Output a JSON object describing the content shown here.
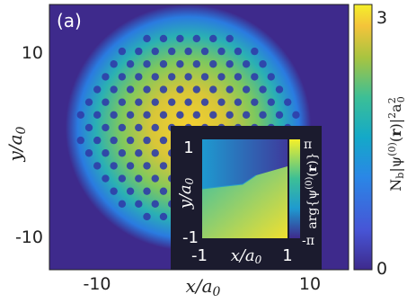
{
  "chart_data": [
    {
      "type": "heatmap",
      "panel_label": "(a)",
      "xlabel": "x/a₀",
      "ylabel": "y/a₀",
      "xlim": [
        -14,
        14
      ],
      "ylim": [
        -14,
        14
      ],
      "xticks": [
        -10,
        10
      ],
      "yticks": [
        10,
        -10
      ],
      "colorbar": {
        "label": "N_b|ψ^(0)(r)|² a₀²",
        "min": 0,
        "max": 3,
        "tick_labels": [
          "3",
          "0"
        ]
      },
      "condensate": {
        "center": [
          -1,
          1
        ],
        "radius": 11.5,
        "lattice": "triangular",
        "vortex_spacing": 1.55
      }
    },
    {
      "type": "heatmap",
      "inset": true,
      "xlabel": "x/a₀",
      "ylabel": "y/a₀",
      "xlim": [
        -1,
        1
      ],
      "ylim": [
        -1,
        1
      ],
      "xtick_labels": [
        "-1",
        "1"
      ],
      "ytick_labels": [
        "1",
        "-1"
      ],
      "colorbar": {
        "label": "arg{ψ^(0)(r)}",
        "min": "-π",
        "max": "π",
        "tick_labels": [
          "π",
          "-π"
        ]
      }
    }
  ],
  "text": {
    "panel_label": "(a)",
    "x_tick_neg": "-10",
    "x_tick_pos": "10",
    "y_tick_pos": "10",
    "y_tick_neg": "-10",
    "cb_top": "3",
    "cb_bottom": "0",
    "inset_x_neg": "-1",
    "inset_x_pos": "1",
    "inset_y_pos": "1",
    "inset_y_neg": "-1",
    "inset_cb_top": "π",
    "inset_cb_bottom": "-π"
  },
  "colors": {
    "background": "#3e2a8c",
    "peak": "#f5e52a",
    "inset_frame": "#1b1b2e"
  }
}
